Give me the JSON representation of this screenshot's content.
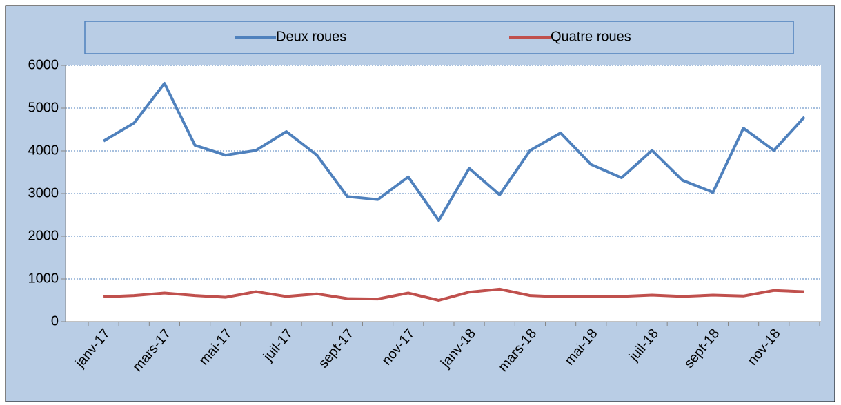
{
  "chart_data": {
    "type": "line",
    "categories": [
      "janv-17",
      null,
      "mars-17",
      null,
      "mai-17",
      null,
      "juil-17",
      null,
      "sept-17",
      null,
      "nov-17",
      null,
      "janv-18",
      null,
      "mars-18",
      null,
      "mai-18",
      null,
      "juil-18",
      null,
      "sept-18",
      null,
      "nov-18",
      null
    ],
    "series": [
      {
        "name": "Deux roues",
        "color": "#4f81bd",
        "values": [
          4230,
          4650,
          5580,
          4130,
          3900,
          4010,
          4450,
          3900,
          2930,
          2860,
          3390,
          2370,
          3590,
          2970,
          4010,
          4420,
          3680,
          3370,
          4010,
          3310,
          3030,
          4530,
          4010,
          4790
        ]
      },
      {
        "name": "Quatre roues",
        "color": "#c0504d",
        "values": [
          580,
          610,
          670,
          610,
          570,
          700,
          590,
          650,
          540,
          530,
          670,
          500,
          690,
          760,
          610,
          580,
          590,
          590,
          620,
          590,
          620,
          600,
          730,
          700
        ]
      }
    ],
    "ylim": [
      0,
      6000
    ],
    "yticks": [
      0,
      1000,
      2000,
      3000,
      4000,
      5000,
      6000
    ],
    "grid": true,
    "legend": "top"
  }
}
